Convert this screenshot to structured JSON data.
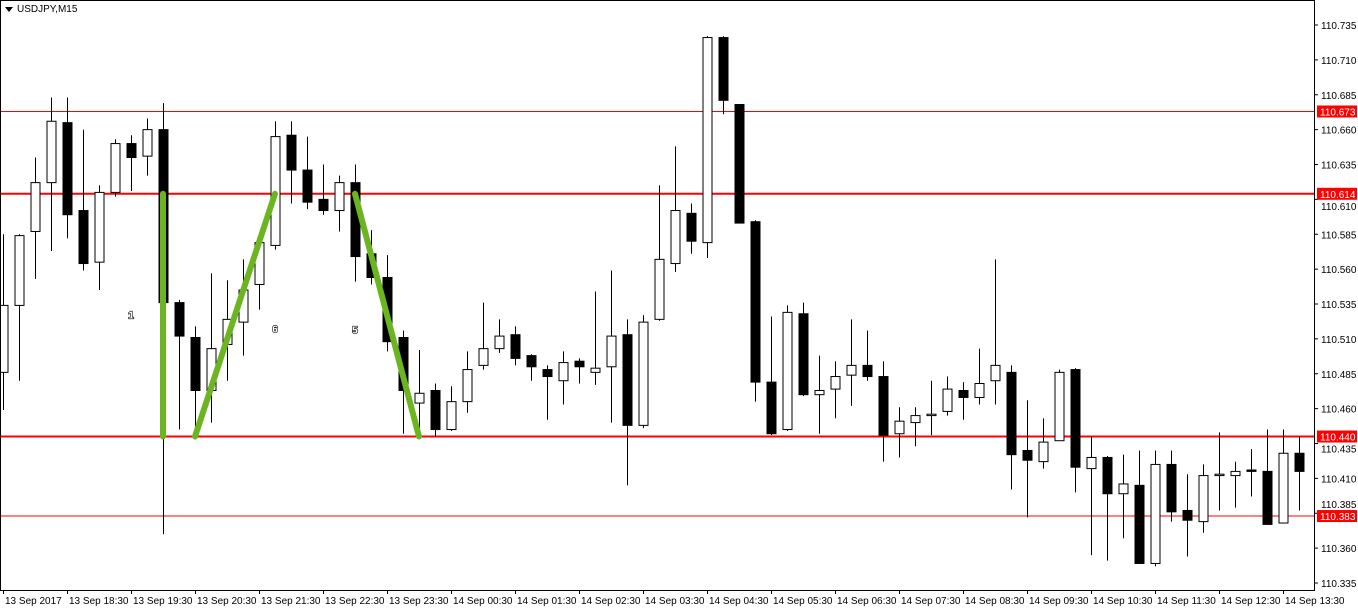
{
  "window": {
    "symbol_title": "USDJPY,M15",
    "menu_icon": "triangle-down-icon"
  },
  "chart_data": {
    "type": "candlestick",
    "title": "USDJPY,M15",
    "ylim": [
      110.335,
      110.735
    ],
    "y_ticks": [
      "110.735",
      "110.710",
      "110.685",
      "110.660",
      "110.635",
      "110.610",
      "110.585",
      "110.560",
      "110.535",
      "110.510",
      "110.485",
      "110.460",
      "110.435",
      "110.410",
      "110.385",
      "110.360",
      "110.335"
    ],
    "x_ticks": [
      {
        "candle": 0,
        "label": "13 Sep 2017"
      },
      {
        "candle": 4,
        "label": "13 Sep 18:30"
      },
      {
        "candle": 8,
        "label": "13 Sep 19:30"
      },
      {
        "candle": 12,
        "label": "13 Sep 20:30"
      },
      {
        "candle": 16,
        "label": "13 Sep 21:30"
      },
      {
        "candle": 20,
        "label": "13 Sep 22:30"
      },
      {
        "candle": 24,
        "label": "13 Sep 23:30"
      },
      {
        "candle": 28,
        "label": "14 Sep 00:30"
      },
      {
        "candle": 32,
        "label": "14 Sep 01:30"
      },
      {
        "candle": 36,
        "label": "14 Sep 02:30"
      },
      {
        "candle": 40,
        "label": "14 Sep 03:30"
      },
      {
        "candle": 44,
        "label": "14 Sep 04:30"
      },
      {
        "candle": 48,
        "label": "14 Sep 05:30"
      },
      {
        "candle": 52,
        "label": "14 Sep 06:30"
      },
      {
        "candle": 56,
        "label": "14 Sep 07:30"
      },
      {
        "candle": 60,
        "label": "14 Sep 08:30"
      },
      {
        "candle": 64,
        "label": "14 Sep 09:30"
      },
      {
        "candle": 68,
        "label": "14 Sep 10:30"
      },
      {
        "candle": 72,
        "label": "14 Sep 11:30"
      },
      {
        "candle": 76,
        "label": "14 Sep 12:30"
      },
      {
        "candle": 80,
        "label": "14 Sep 13:30"
      }
    ],
    "ohlc_columns": [
      "open",
      "high",
      "low",
      "close"
    ],
    "candles": [
      [
        110.486,
        110.585,
        110.459,
        110.534
      ],
      [
        110.534,
        110.585,
        110.48,
        110.584
      ],
      [
        110.587,
        110.64,
        110.553,
        110.622
      ],
      [
        110.622,
        110.683,
        110.573,
        110.666
      ],
      [
        110.665,
        110.683,
        110.582,
        110.599
      ],
      [
        110.602,
        110.66,
        110.559,
        110.564
      ],
      [
        110.565,
        110.62,
        110.545,
        110.615
      ],
      [
        110.615,
        110.653,
        110.612,
        110.65
      ],
      [
        110.65,
        110.656,
        110.616,
        110.64
      ],
      [
        110.641,
        110.668,
        110.627,
        110.66
      ],
      [
        110.66,
        110.679,
        110.37,
        110.536
      ],
      [
        110.536,
        110.538,
        110.445,
        110.512
      ],
      [
        110.511,
        110.519,
        110.445,
        110.473
      ],
      [
        110.473,
        110.557,
        110.45,
        110.503
      ],
      [
        110.506,
        110.552,
        110.48,
        110.524
      ],
      [
        110.522,
        110.567,
        110.498,
        110.545
      ],
      [
        110.549,
        110.581,
        110.531,
        110.579
      ],
      [
        110.577,
        110.666,
        110.574,
        110.655
      ],
      [
        110.656,
        110.666,
        110.607,
        110.631
      ],
      [
        110.631,
        110.655,
        110.603,
        110.608
      ],
      [
        110.61,
        110.635,
        110.599,
        110.602
      ],
      [
        110.602,
        110.627,
        110.587,
        110.622
      ],
      [
        110.622,
        110.635,
        110.551,
        110.569
      ],
      [
        110.571,
        110.588,
        110.549,
        110.554
      ],
      [
        110.554,
        110.57,
        110.501,
        110.508
      ],
      [
        110.511,
        110.516,
        110.442,
        110.473
      ],
      [
        110.464,
        110.502,
        110.44,
        110.471
      ],
      [
        110.473,
        110.478,
        110.44,
        110.445
      ],
      [
        110.445,
        110.476,
        110.444,
        110.465
      ],
      [
        110.465,
        110.501,
        110.457,
        110.488
      ],
      [
        110.491,
        110.536,
        110.488,
        110.503
      ],
      [
        110.503,
        110.524,
        110.5,
        110.512
      ],
      [
        110.513,
        110.519,
        110.491,
        110.496
      ],
      [
        110.498,
        110.499,
        110.48,
        110.49
      ],
      [
        110.488,
        110.491,
        110.452,
        110.483
      ],
      [
        110.48,
        110.501,
        110.463,
        110.493
      ],
      [
        110.494,
        110.496,
        110.478,
        110.49
      ],
      [
        110.486,
        110.544,
        110.477,
        110.489
      ],
      [
        110.49,
        110.559,
        110.45,
        110.512
      ],
      [
        110.513,
        110.524,
        110.405,
        110.448
      ],
      [
        110.448,
        110.527,
        110.446,
        110.522
      ],
      [
        110.524,
        110.62,
        110.523,
        110.567
      ],
      [
        110.564,
        110.648,
        110.558,
        110.602
      ],
      [
        110.6,
        110.607,
        110.571,
        110.58
      ],
      [
        110.579,
        110.727,
        110.568,
        110.726
      ],
      [
        110.726,
        110.727,
        110.671,
        110.681
      ],
      [
        110.678,
        110.678,
        110.593,
        110.593
      ],
      [
        110.594,
        110.595,
        110.465,
        110.479
      ],
      [
        110.479,
        110.526,
        110.441,
        110.442
      ],
      [
        110.445,
        110.534,
        110.444,
        110.529
      ],
      [
        110.528,
        110.536,
        110.469,
        110.47
      ],
      [
        110.47,
        110.498,
        110.442,
        110.473
      ],
      [
        110.474,
        110.494,
        110.453,
        110.483
      ],
      [
        110.484,
        110.524,
        110.462,
        110.491
      ],
      [
        110.491,
        110.516,
        110.48,
        110.483
      ],
      [
        110.483,
        110.494,
        110.422,
        110.441
      ],
      [
        110.442,
        110.461,
        110.425,
        110.451
      ],
      [
        110.45,
        110.461,
        110.433,
        110.455
      ],
      [
        110.455,
        110.48,
        110.441,
        110.456
      ],
      [
        110.458,
        110.483,
        110.455,
        110.474
      ],
      [
        110.473,
        110.479,
        110.452,
        110.468
      ],
      [
        110.468,
        110.503,
        110.463,
        110.478
      ],
      [
        110.48,
        110.567,
        110.463,
        110.491
      ],
      [
        110.486,
        110.491,
        110.402,
        110.427
      ],
      [
        110.43,
        110.466,
        110.382,
        110.423
      ],
      [
        110.422,
        110.453,
        110.417,
        110.436
      ],
      [
        110.437,
        110.488,
        110.437,
        110.486
      ],
      [
        110.488,
        110.489,
        110.4,
        110.418
      ],
      [
        110.417,
        110.44,
        110.355,
        110.425
      ],
      [
        110.425,
        110.426,
        110.351,
        110.399
      ],
      [
        110.399,
        110.427,
        110.367,
        110.406
      ],
      [
        110.405,
        110.43,
        110.349,
        110.349
      ],
      [
        110.349,
        110.43,
        110.347,
        110.42
      ],
      [
        110.42,
        110.43,
        110.379,
        110.386
      ],
      [
        110.387,
        110.413,
        110.354,
        110.38
      ],
      [
        110.379,
        110.42,
        110.371,
        110.412
      ],
      [
        110.412,
        110.443,
        110.387,
        110.413
      ],
      [
        110.412,
        110.422,
        110.389,
        110.415
      ],
      [
        110.416,
        110.431,
        110.397,
        110.415
      ],
      [
        110.415,
        110.445,
        110.377,
        110.377
      ],
      [
        110.378,
        110.445,
        110.378,
        110.428
      ],
      [
        110.428,
        110.44,
        110.387,
        110.415
      ]
    ],
    "horizontal_lines": [
      {
        "price": 110.673,
        "label": "110.673",
        "style": "thin"
      },
      {
        "price": 110.614,
        "label": "110.614",
        "style": "thick"
      },
      {
        "price": 110.44,
        "label": "110.440",
        "style": "thick"
      },
      {
        "price": 110.383,
        "label": "110.383",
        "style": "thin"
      }
    ],
    "trend_lines": [
      {
        "from": {
          "candle": 10,
          "price": 110.614
        },
        "to": {
          "candle": 10,
          "price": 110.44
        }
      },
      {
        "from": {
          "candle": 12,
          "price": 110.44
        },
        "to": {
          "candle": 17,
          "price": 110.614
        }
      },
      {
        "from": {
          "candle": 22,
          "price": 110.614
        },
        "to": {
          "candle": 26,
          "price": 110.44
        }
      }
    ],
    "annotations": [
      {
        "text": "1",
        "candle": 8,
        "price": 110.529
      },
      {
        "text": "6",
        "candle": 17,
        "price": 110.519
      },
      {
        "text": "5",
        "candle": 22,
        "price": 110.518
      }
    ],
    "colors": {
      "bull_body": "#ffffff",
      "bear_body": "#000000",
      "outline": "#000000",
      "level_line": "#ff0000",
      "trend_line": "#6ab520",
      "price_label_bg": "#ff0000",
      "price_label_text": "#ffffff"
    },
    "grid": false
  }
}
